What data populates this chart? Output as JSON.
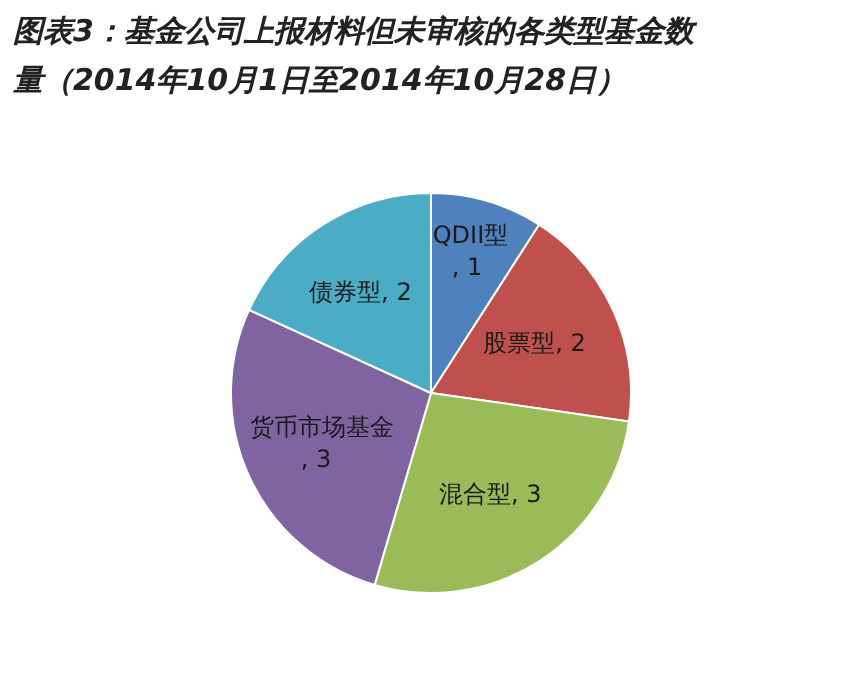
{
  "chart_data": {
    "type": "pie",
    "title": "图表3：基金公司上报材料但未审核的各类型基金数量（2014年10月1日至2014年10月28日）",
    "categories": [
      "QDII型",
      "股票型",
      "混合型",
      "货币市场基金",
      "债券型"
    ],
    "values": [
      1,
      2,
      3,
      3,
      2
    ],
    "colors": [
      "#4f81bd",
      "#c0504d",
      "#9bbb59",
      "#8064a2",
      "#4bacc6"
    ],
    "value_labels": [
      ", 1",
      ", 2",
      ", 3",
      ", 3",
      ", 2"
    ]
  }
}
